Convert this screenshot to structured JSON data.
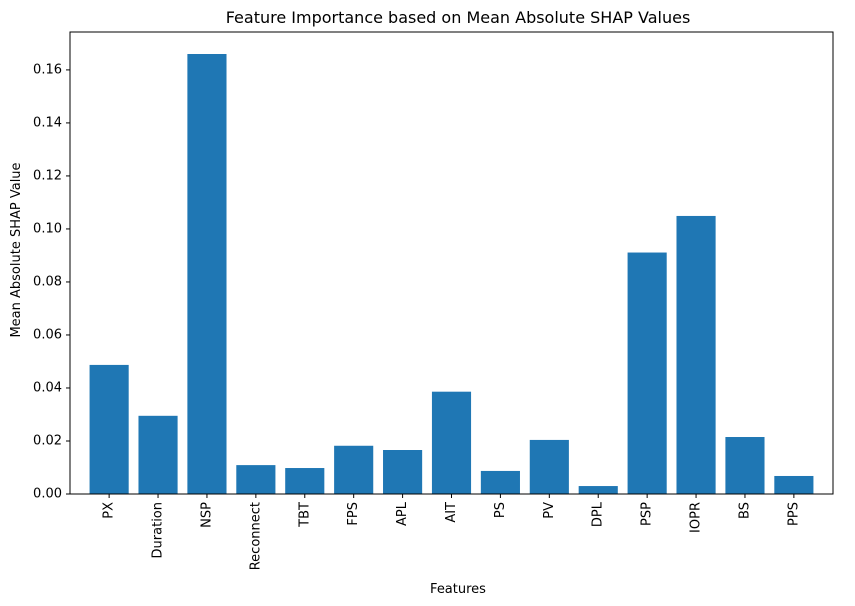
{
  "chart_data": {
    "type": "bar",
    "title": "Feature Importance based on Mean Absolute SHAP Values",
    "xlabel": "Features",
    "ylabel": "Mean Absolute SHAP Value",
    "categories": [
      "PX",
      "Duration",
      "NSP",
      "Reconnect",
      "TBT",
      "FPS",
      "APL",
      "AIT",
      "PS",
      "PV",
      "DPL",
      "PSP",
      "IOPR",
      "BS",
      "PPS"
    ],
    "values": [
      0.0487,
      0.0295,
      0.166,
      0.0109,
      0.0098,
      0.0182,
      0.0166,
      0.0386,
      0.0087,
      0.0204,
      0.003,
      0.0911,
      0.1049,
      0.0215,
      0.0068
    ],
    "yticks": [
      "0.00",
      "0.02",
      "0.04",
      "0.06",
      "0.08",
      "0.10",
      "0.12",
      "0.14",
      "0.16"
    ],
    "ylim": [
      0,
      0.1743
    ],
    "grid": false,
    "bar_color": "#1f77b4"
  }
}
